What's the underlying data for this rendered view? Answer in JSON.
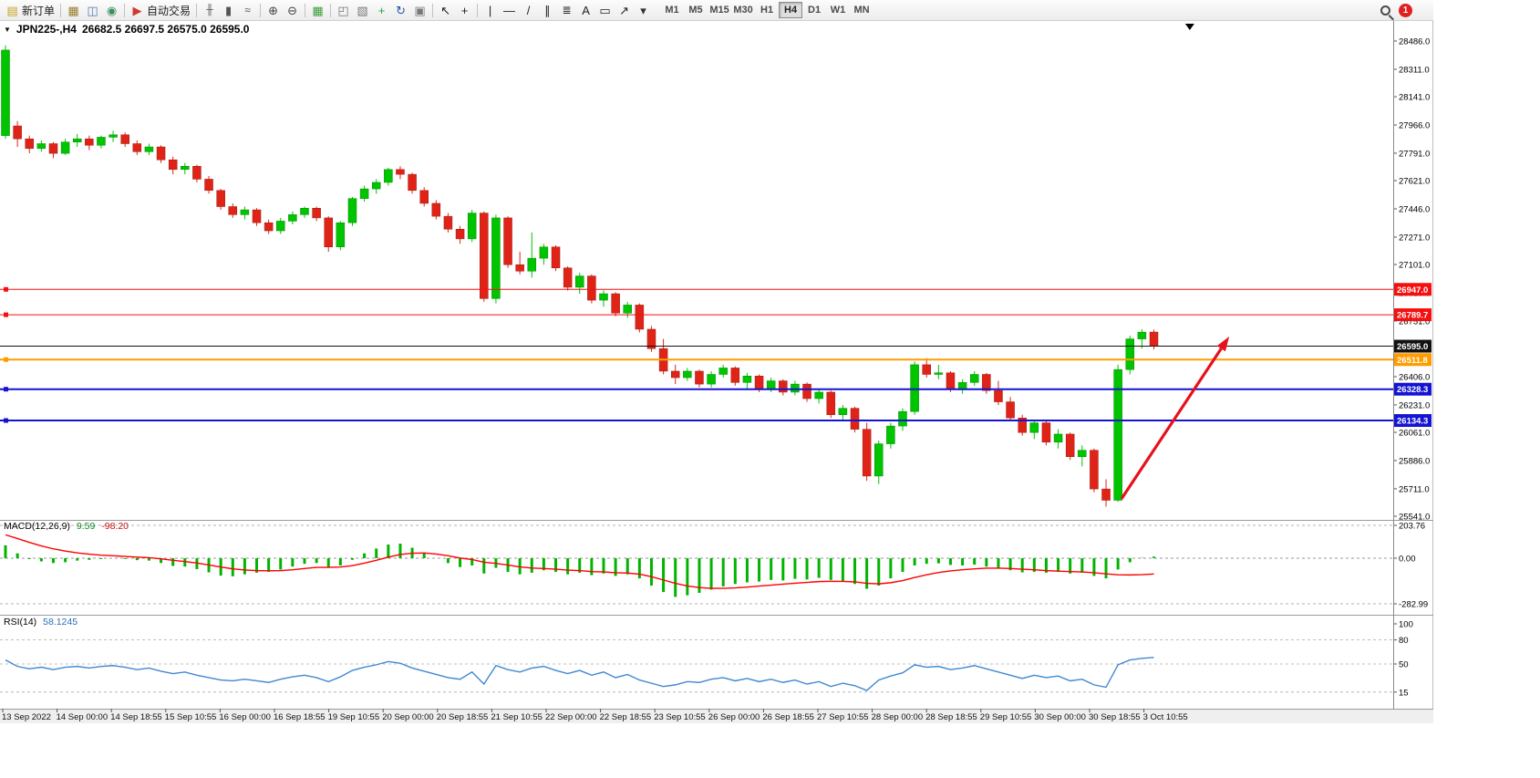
{
  "toolbar": {
    "notification_count": "1",
    "timeframes": [
      "M1",
      "M5",
      "M15",
      "M30",
      "H1",
      "H4",
      "D1",
      "W1",
      "MN"
    ],
    "active_timeframe": "H4",
    "left_items": [
      {
        "name": "new-order-button",
        "icon": "new-order-icon",
        "glyph": "▤",
        "color": "#c9a227",
        "label": "新订单"
      },
      {
        "sep": true
      },
      {
        "name": "market-watch-button",
        "icon": "market-watch-icon",
        "glyph": "▦",
        "color": "#9a7d2e"
      },
      {
        "name": "data-window-button",
        "icon": "data-window-icon",
        "glyph": "◫",
        "color": "#5577bb"
      },
      {
        "name": "navigator-button",
        "icon": "navigator-icon",
        "glyph": "◉",
        "color": "#3a8f5f"
      },
      {
        "sep": true
      },
      {
        "name": "auto-trading-button",
        "icon": "auto-trading-icon",
        "glyph": "▶",
        "color": "#cc3b2f",
        "label": "自动交易"
      },
      {
        "sep": true
      },
      {
        "name": "bar-chart-button",
        "icon": "bar-chart-icon",
        "glyph": "╫",
        "color": "#555555"
      },
      {
        "name": "candlestick-chart-button",
        "icon": "candlestick-chart-icon",
        "glyph": "▮",
        "color": "#555555"
      },
      {
        "name": "line-chart-button",
        "icon": "line-chart-icon",
        "glyph": "≈",
        "color": "#555555"
      },
      {
        "sep": true
      },
      {
        "name": "zoom-in-button",
        "icon": "zoom-in-icon",
        "glyph": "⊕",
        "color": "#444444"
      },
      {
        "name": "zoom-out-button",
        "icon": "zoom-out-icon",
        "glyph": "⊖",
        "color": "#444444"
      },
      {
        "sep": true
      },
      {
        "name": "tile-windows-button",
        "icon": "tile-windows-icon",
        "glyph": "▦",
        "color": "#3a9d3a"
      },
      {
        "sep": true
      },
      {
        "name": "indicators-button",
        "icon": "indicators-icon",
        "glyph": "◰",
        "color": "#777777"
      },
      {
        "name": "templates-button",
        "icon": "templates-icon",
        "glyph": "▧",
        "color": "#777777"
      },
      {
        "name": "new-chart-button",
        "icon": "new-chart-icon",
        "glyph": "+",
        "color": "#2f9e44"
      },
      {
        "name": "auto-scroll-button",
        "icon": "auto-scroll-icon",
        "glyph": "↻",
        "color": "#2559a8"
      },
      {
        "name": "chart-shift-button",
        "icon": "chart-shift-icon",
        "glyph": "▣",
        "color": "#777777"
      },
      {
        "sep": true
      },
      {
        "name": "cursor-button",
        "icon": "cursor-icon",
        "glyph": "↖",
        "color": "#222222"
      },
      {
        "name": "crosshair-button",
        "icon": "crosshair-icon",
        "glyph": "+",
        "color": "#222222"
      },
      {
        "sep": true
      },
      {
        "name": "vertical-line-button",
        "icon": "vertical-line-icon",
        "glyph": "|",
        "color": "#222222"
      },
      {
        "name": "horizontal-line-button",
        "icon": "horizontal-line-icon",
        "glyph": "—",
        "color": "#222222"
      },
      {
        "name": "trendline-button",
        "icon": "trendline-icon",
        "glyph": "/",
        "color": "#222222"
      },
      {
        "name": "channel-button",
        "icon": "channel-icon",
        "glyph": "∥",
        "color": "#222222"
      },
      {
        "name": "fibonacci-button",
        "icon": "fibonacci-icon",
        "glyph": "≣",
        "color": "#222222"
      },
      {
        "name": "text-button",
        "icon": "text-icon",
        "glyph": "A",
        "color": "#222222"
      },
      {
        "name": "text-label-button",
        "icon": "text-label-icon",
        "glyph": "▭",
        "color": "#222222"
      },
      {
        "name": "arrow-objects-button",
        "icon": "arrow-objects-icon",
        "glyph": "↗",
        "color": "#222222"
      },
      {
        "name": "objects-dropdown-button",
        "icon": "caret-down-icon",
        "glyph": "▾",
        "color": "#333333"
      }
    ]
  },
  "chart": {
    "title_symbol": "JPN225-,H4",
    "title_ohlc": "26682.5 26697.5 26575.0 26595.0",
    "collapse_glyph": "▼",
    "up_color": "#00c400",
    "down_color": "#df2417"
  },
  "price_axis": {
    "ticks": [
      "28486.0",
      "28311.0",
      "28141.0",
      "27966.0",
      "27791.0",
      "27621.0",
      "27446.0",
      "27271.0",
      "27101.0",
      "26926.0",
      "26751.0",
      "26576.0",
      "26406.0",
      "26231.0",
      "26061.0",
      "25886.0",
      "25711.0",
      "25541.0"
    ]
  },
  "time_axis": {
    "labels": [
      "13 Sep 2022",
      "14 Sep 00:00",
      "14 Sep 18:55",
      "15 Sep 10:55",
      "16 Sep 00:00",
      "16 Sep 18:55",
      "19 Sep 10:55",
      "20 Sep 00:00",
      "20 Sep 18:55",
      "21 Sep 10:55",
      "22 Sep 00:00",
      "22 Sep 18:55",
      "23 Sep 10:55",
      "26 Sep 00:00",
      "26 Sep 18:55",
      "27 Sep 10:55",
      "28 Sep 00:00",
      "28 Sep 18:55",
      "29 Sep 10:55",
      "30 Sep 00:00",
      "30 Sep 18:55",
      "3 Oct 10:55"
    ]
  },
  "indicators": {
    "macd": {
      "label": "MACD(12,26,9)",
      "value_macd": "9.59",
      "value_signal": "-98.20",
      "axis_values": [
        203.76,
        0,
        -282.99
      ],
      "axis_labels": [
        "203.76",
        "0.00",
        "-282.99"
      ],
      "histogram_color": "#00b400",
      "signal_color": "#ff0000"
    },
    "rsi": {
      "label": "RSI(14)",
      "value": "58.1245",
      "axis_values": [
        100,
        80,
        50,
        15
      ],
      "axis_labels": [
        "100",
        "80",
        "50",
        "15"
      ],
      "levels": [
        80,
        50,
        15
      ],
      "line_color": "#4088d0"
    }
  },
  "chart_data": {
    "type": "candlestick",
    "symbol": "JPN225-",
    "timeframe": "H4",
    "current_ohlc": {
      "open": 26682.5,
      "high": 26697.5,
      "low": 26575.0,
      "close": 26595.0
    },
    "price_range": [
      25541.0,
      28486.0
    ],
    "candles": [
      [
        27900,
        28460,
        27880,
        28430
      ],
      [
        27960,
        27990,
        27830,
        27880
      ],
      [
        27880,
        27900,
        27790,
        27820
      ],
      [
        27820,
        27870,
        27800,
        27850
      ],
      [
        27850,
        27860,
        27760,
        27790
      ],
      [
        27790,
        27880,
        27780,
        27860
      ],
      [
        27860,
        27910,
        27830,
        27880
      ],
      [
        27880,
        27900,
        27810,
        27840
      ],
      [
        27840,
        27900,
        27820,
        27890
      ],
      [
        27890,
        27930,
        27860,
        27905
      ],
      [
        27905,
        27920,
        27830,
        27850
      ],
      [
        27850,
        27870,
        27780,
        27800
      ],
      [
        27800,
        27850,
        27780,
        27830
      ],
      [
        27830,
        27840,
        27730,
        27750
      ],
      [
        27750,
        27770,
        27660,
        27690
      ],
      [
        27690,
        27730,
        27660,
        27710
      ],
      [
        27710,
        27720,
        27610,
        27630
      ],
      [
        27630,
        27650,
        27540,
        27560
      ],
      [
        27560,
        27570,
        27440,
        27460
      ],
      [
        27460,
        27480,
        27390,
        27410
      ],
      [
        27410,
        27460,
        27380,
        27440
      ],
      [
        27440,
        27450,
        27340,
        27360
      ],
      [
        27360,
        27380,
        27290,
        27310
      ],
      [
        27310,
        27390,
        27290,
        27370
      ],
      [
        27370,
        27430,
        27350,
        27410
      ],
      [
        27410,
        27460,
        27390,
        27450
      ],
      [
        27450,
        27460,
        27370,
        27390
      ],
      [
        27390,
        27400,
        27180,
        27210
      ],
      [
        27210,
        27370,
        27190,
        27360
      ],
      [
        27360,
        27520,
        27340,
        27510
      ],
      [
        27510,
        27590,
        27490,
        27570
      ],
      [
        27570,
        27630,
        27540,
        27610
      ],
      [
        27610,
        27700,
        27590,
        27690
      ],
      [
        27690,
        27710,
        27630,
        27660
      ],
      [
        27660,
        27670,
        27540,
        27560
      ],
      [
        27560,
        27580,
        27460,
        27480
      ],
      [
        27480,
        27500,
        27380,
        27400
      ],
      [
        27400,
        27420,
        27300,
        27320
      ],
      [
        27320,
        27340,
        27230,
        27260
      ],
      [
        27260,
        27440,
        27240,
        27420
      ],
      [
        27420,
        27430,
        26870,
        26890
      ],
      [
        26890,
        27410,
        26860,
        27390
      ],
      [
        27390,
        27400,
        27080,
        27100
      ],
      [
        27100,
        27180,
        27040,
        27060
      ],
      [
        27060,
        27300,
        27020,
        27140
      ],
      [
        27140,
        27230,
        27100,
        27210
      ],
      [
        27210,
        27220,
        27060,
        27080
      ],
      [
        27080,
        27090,
        26940,
        26960
      ],
      [
        26960,
        27050,
        26920,
        27030
      ],
      [
        27030,
        27040,
        26860,
        26880
      ],
      [
        26880,
        26940,
        26840,
        26920
      ],
      [
        26920,
        26930,
        26780,
        26800
      ],
      [
        26800,
        26870,
        26770,
        26850
      ],
      [
        26850,
        26860,
        26680,
        26700
      ],
      [
        26700,
        26720,
        26560,
        26580
      ],
      [
        26580,
        26640,
        26420,
        26440
      ],
      [
        26440,
        26480,
        26360,
        26400
      ],
      [
        26400,
        26460,
        26380,
        26440
      ],
      [
        26440,
        26450,
        26340,
        26360
      ],
      [
        26360,
        26440,
        26340,
        26420
      ],
      [
        26420,
        26480,
        26400,
        26460
      ],
      [
        26460,
        26470,
        26350,
        26370
      ],
      [
        26370,
        26430,
        26330,
        26410
      ],
      [
        26410,
        26420,
        26310,
        26330
      ],
      [
        26330,
        26400,
        26310,
        26380
      ],
      [
        26380,
        26390,
        26290,
        26310
      ],
      [
        26310,
        26380,
        26290,
        26360
      ],
      [
        26360,
        26370,
        26250,
        26270
      ],
      [
        26270,
        26330,
        26240,
        26310
      ],
      [
        26310,
        26320,
        26150,
        26170
      ],
      [
        26170,
        26230,
        26130,
        26210
      ],
      [
        26210,
        26220,
        26060,
        26080
      ],
      [
        26080,
        26120,
        25760,
        25790
      ],
      [
        25790,
        26010,
        25740,
        25990
      ],
      [
        25990,
        26120,
        25960,
        26100
      ],
      [
        26100,
        26210,
        26070,
        26190
      ],
      [
        26190,
        26500,
        26170,
        26480
      ],
      [
        26480,
        26520,
        26400,
        26420
      ],
      [
        26420,
        26480,
        26390,
        26430
      ],
      [
        26430,
        26440,
        26310,
        26330
      ],
      [
        26330,
        26390,
        26300,
        26370
      ],
      [
        26370,
        26440,
        26350,
        26420
      ],
      [
        26420,
        26430,
        26300,
        26320
      ],
      [
        26320,
        26380,
        26230,
        26250
      ],
      [
        26250,
        26280,
        26130,
        26150
      ],
      [
        26150,
        26170,
        26040,
        26060
      ],
      [
        26060,
        26140,
        26020,
        26120
      ],
      [
        26120,
        26130,
        25980,
        26000
      ],
      [
        26000,
        26080,
        25960,
        26050
      ],
      [
        26050,
        26060,
        25890,
        25910
      ],
      [
        25910,
        25980,
        25850,
        25950
      ],
      [
        25950,
        25960,
        25690,
        25710
      ],
      [
        25710,
        25770,
        25600,
        25640
      ],
      [
        25640,
        26480,
        25630,
        26450
      ],
      [
        26450,
        26660,
        26420,
        26640
      ],
      [
        26640,
        26700,
        26580,
        26682
      ],
      [
        26682.5,
        26697.5,
        26575.0,
        26595.0
      ]
    ],
    "horizontal_lines": [
      {
        "price": 26947.0,
        "color": "#f50f0f",
        "width": 1,
        "handle": true
      },
      {
        "price": 26789.7,
        "color": "#f50f0f",
        "width": 1,
        "handle": true
      },
      {
        "price": 26595.0,
        "color": "#111111",
        "width": 1,
        "handle": false,
        "role": "current-price"
      },
      {
        "price": 26511.8,
        "color": "#ff9c00",
        "width": 2,
        "handle": true
      },
      {
        "price": 26328.3,
        "color": "#1414d2",
        "width": 2,
        "handle": true
      },
      {
        "price": 26134.3,
        "color": "#1414d2",
        "width": 2,
        "handle": true
      }
    ],
    "trend_arrow": {
      "from_bar": 93.3,
      "from_price": 25650,
      "to_bar": 102.3,
      "to_price": 26655,
      "color": "#e8101c"
    },
    "chart_shift_marker_bar": 99,
    "macd": {
      "histogram": [
        80,
        30,
        -5,
        -20,
        -30,
        -25,
        -15,
        -10,
        -5,
        0,
        -5,
        -12,
        -15,
        -30,
        -48,
        -52,
        -68,
        -88,
        -108,
        -112,
        -100,
        -90,
        -85,
        -70,
        -52,
        -35,
        -30,
        -55,
        -45,
        -10,
        30,
        60,
        85,
        90,
        65,
        35,
        0,
        -30,
        -55,
        -45,
        -95,
        -60,
        -85,
        -100,
        -90,
        -75,
        -85,
        -100,
        -90,
        -105,
        -95,
        -110,
        -100,
        -125,
        -170,
        -210,
        -240,
        -230,
        -215,
        -195,
        -175,
        -160,
        -150,
        -145,
        -135,
        -138,
        -128,
        -132,
        -122,
        -135,
        -145,
        -160,
        -190,
        -170,
        -125,
        -85,
        -45,
        -35,
        -32,
        -42,
        -45,
        -40,
        -52,
        -62,
        -75,
        -88,
        -85,
        -90,
        -85,
        -95,
        -90,
        -110,
        -125,
        -70,
        -25,
        2,
        9.59
      ],
      "signal": [
        145,
        122,
        98,
        76,
        58,
        44,
        33,
        25,
        19,
        15,
        11,
        7,
        3,
        -4,
        -13,
        -21,
        -30,
        -42,
        -55,
        -66,
        -73,
        -77,
        -78,
        -77,
        -72,
        -64,
        -57,
        -57,
        -55,
        -46,
        -31,
        -13,
        7,
        23,
        31,
        32,
        26,
        15,
        1,
        -8,
        -25,
        -32,
        -43,
        -54,
        -61,
        -64,
        -68,
        -74,
        -77,
        -83,
        -85,
        -90,
        -92,
        -99,
        -115,
        -135,
        -156,
        -172,
        -182,
        -187,
        -187,
        -184,
        -179,
        -173,
        -167,
        -161,
        -155,
        -150,
        -145,
        -143,
        -144,
        -147,
        -156,
        -159,
        -152,
        -139,
        -120,
        -103,
        -89,
        -79,
        -72,
        -66,
        -62,
        -62,
        -64,
        -68,
        -72,
        -77,
        -80,
        -83,
        -85,
        -90,
        -97,
        -103,
        -104,
        -102,
        -98.2
      ]
    },
    "rsi": {
      "values": [
        55,
        47,
        44,
        46,
        43,
        46,
        47,
        45,
        47,
        48,
        46,
        43,
        45,
        41,
        38,
        40,
        36,
        33,
        30,
        29,
        31,
        29,
        27,
        31,
        34,
        36,
        33,
        28,
        34,
        42,
        46,
        49,
        53,
        51,
        45,
        41,
        37,
        33,
        31,
        40,
        25,
        48,
        43,
        40,
        45,
        47,
        42,
        38,
        42,
        36,
        40,
        33,
        37,
        30,
        26,
        22,
        24,
        28,
        27,
        31,
        33,
        29,
        32,
        28,
        31,
        27,
        30,
        25,
        28,
        22,
        26,
        23,
        17,
        30,
        35,
        39,
        49,
        46,
        47,
        43,
        45,
        48,
        44,
        40,
        36,
        32,
        36,
        33,
        35,
        29,
        31,
        24,
        21,
        49,
        55,
        57,
        58.12
      ]
    }
  }
}
